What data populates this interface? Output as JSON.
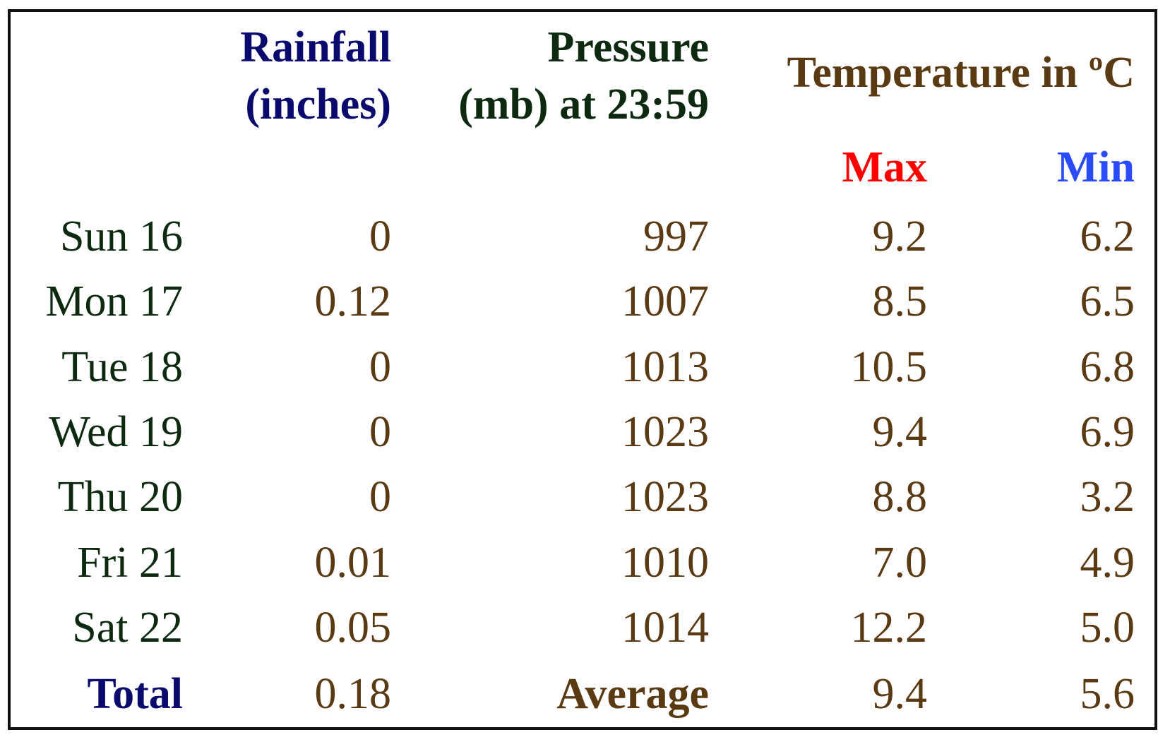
{
  "headers": {
    "rainfall": [
      "Rainfall",
      "(inches)"
    ],
    "pressure": [
      "Pressure",
      "(mb) at 23:59"
    ],
    "temperature": "Temperature in ºC",
    "max": "Max",
    "min": "Min"
  },
  "rows": [
    {
      "day": "Sun 16",
      "rainfall": "0",
      "pressure": "997",
      "max": "9.2",
      "min": "6.2"
    },
    {
      "day": "Mon 17",
      "rainfall": "0.12",
      "pressure": "1007",
      "max": "8.5",
      "min": "6.5"
    },
    {
      "day": "Tue 18",
      "rainfall": "0",
      "pressure": "1013",
      "max": "10.5",
      "min": "6.8"
    },
    {
      "day": "Wed 19",
      "rainfall": "0",
      "pressure": "1023",
      "max": "9.4",
      "min": "6.9"
    },
    {
      "day": "Thu 20",
      "rainfall": "0",
      "pressure": "1023",
      "max": "8.8",
      "min": "3.2"
    },
    {
      "day": "Fri 21",
      "rainfall": "0.01",
      "pressure": "1010",
      "max": "7.0",
      "min": "4.9"
    },
    {
      "day": "Sat 22",
      "rainfall": "0.05",
      "pressure": "1014",
      "max": "12.2",
      "min": "5.0"
    }
  ],
  "summary": {
    "total_label": "Total",
    "total_rainfall": "0.18",
    "average_label": "Average",
    "average_max": "9.4",
    "average_min": "5.6"
  }
}
